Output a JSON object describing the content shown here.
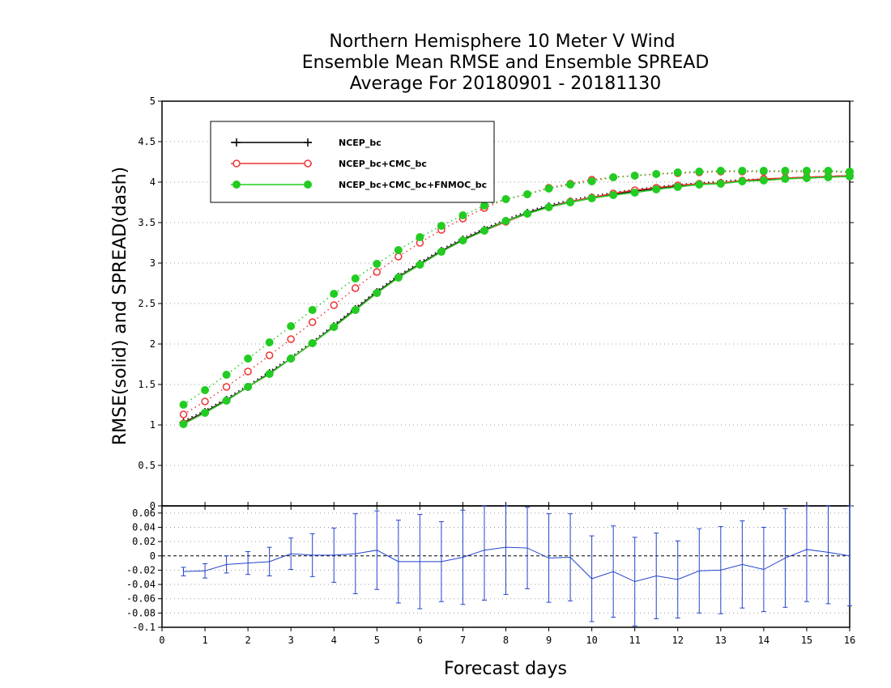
{
  "chart_data": {
    "type": "line",
    "title": [
      "Northern Hemisphere 10 Meter V Wind",
      "Ensemble Mean RMSE and Ensemble SPREAD",
      "Average For 20180901 - 20181130"
    ],
    "xlabel": "Forecast days",
    "ylabel": "RMSE(solid) and SPREAD(dash)",
    "xlim": [
      0,
      16
    ],
    "ylim": [
      0,
      5
    ],
    "x_ticks": [
      "0",
      "1",
      "2",
      "3",
      "4",
      "5",
      "6",
      "7",
      "8",
      "9",
      "10",
      "11",
      "12",
      "13",
      "14",
      "15",
      "16"
    ],
    "y_ticks": [
      "0",
      "0.5",
      "1",
      "1.5",
      "2",
      "2.5",
      "3",
      "3.5",
      "4",
      "4.5",
      "5"
    ],
    "grid": "dotted-horizontal",
    "legend_position": "top-left",
    "x": [
      0.5,
      1,
      1.5,
      2,
      2.5,
      3,
      3.5,
      4,
      4.5,
      5,
      5.5,
      6,
      6.5,
      7,
      7.5,
      8,
      8.5,
      9,
      9.5,
      10,
      10.5,
      11,
      11.5,
      12,
      12.5,
      13,
      13.5,
      14,
      14.5,
      15,
      15.5,
      16
    ],
    "series": [
      {
        "name": "NCEP_bc",
        "color": "#000000",
        "marker": "plus",
        "rmse": [
          1.03,
          1.16,
          1.31,
          1.47,
          1.64,
          1.82,
          2.01,
          2.22,
          2.43,
          2.64,
          2.83,
          2.99,
          3.15,
          3.29,
          3.41,
          3.52,
          3.62,
          3.7,
          3.76,
          3.81,
          3.85,
          3.89,
          3.92,
          3.95,
          3.97,
          3.99,
          4.01,
          4.03,
          4.05,
          4.06,
          4.07,
          4.08
        ],
        "spread": [
          1.05,
          1.18,
          1.33,
          1.49,
          1.66,
          1.84,
          2.03,
          2.24,
          2.45,
          2.66,
          2.85,
          3.01,
          3.17,
          3.31,
          3.43,
          3.54,
          3.64,
          3.72,
          3.78,
          3.83,
          3.87,
          3.91,
          3.94,
          3.97,
          3.99,
          4.01,
          4.03,
          4.04,
          4.05,
          4.06,
          4.07,
          4.08
        ]
      },
      {
        "name": "NCEP_bc+CMC_bc",
        "color": "#ee3333",
        "marker": "open-circle",
        "rmse": [
          1.02,
          1.15,
          1.3,
          1.47,
          1.63,
          1.82,
          2.01,
          2.21,
          2.42,
          2.63,
          2.82,
          2.98,
          3.14,
          3.28,
          3.4,
          3.51,
          3.61,
          3.69,
          3.76,
          3.81,
          3.86,
          3.9,
          3.93,
          3.96,
          3.98,
          3.99,
          4.02,
          4.04,
          4.05,
          4.06,
          4.07,
          4.08
        ],
        "spread": [
          1.13,
          1.29,
          1.47,
          1.66,
          1.86,
          2.06,
          2.27,
          2.48,
          2.69,
          2.89,
          3.08,
          3.25,
          3.41,
          3.55,
          3.68,
          3.79,
          3.85,
          3.93,
          3.98,
          4.03,
          4.06,
          4.08,
          4.1,
          4.11,
          4.12,
          4.13,
          4.13,
          4.13,
          4.13,
          4.13,
          4.13,
          4.12
        ]
      },
      {
        "name": "NCEP_bc+CMC_bc+FNMOC_bc",
        "color": "#22cc22",
        "marker": "filled-circle",
        "rmse": [
          1.01,
          1.15,
          1.3,
          1.47,
          1.63,
          1.82,
          2.01,
          2.21,
          2.42,
          2.63,
          2.82,
          2.98,
          3.14,
          3.28,
          3.4,
          3.52,
          3.61,
          3.69,
          3.75,
          3.8,
          3.84,
          3.87,
          3.91,
          3.94,
          3.97,
          3.98,
          4.01,
          4.02,
          4.04,
          4.05,
          4.06,
          4.07
        ],
        "spread": [
          1.25,
          1.43,
          1.62,
          1.82,
          2.02,
          2.22,
          2.42,
          2.62,
          2.81,
          2.99,
          3.16,
          3.32,
          3.46,
          3.59,
          3.71,
          3.79,
          3.85,
          3.92,
          3.97,
          4.01,
          4.06,
          4.08,
          4.1,
          4.12,
          4.13,
          4.14,
          4.14,
          4.14,
          4.14,
          4.14,
          4.14,
          4.13
        ]
      }
    ],
    "difference_panel": {
      "ylim": [
        -0.1,
        0.07
      ],
      "y_ticks": [
        "0.06",
        "0.04",
        "0.02",
        "0",
        "-0.02",
        "-0.04",
        "-0.06",
        "-0.08",
        "-0.1"
      ],
      "color": "#2244cc",
      "values": [
        -0.022,
        -0.021,
        -0.012,
        -0.01,
        -0.008,
        0.003,
        0.001,
        0.001,
        0.003,
        0.008,
        -0.008,
        -0.008,
        -0.008,
        -0.002,
        0.008,
        0.012,
        0.011,
        -0.003,
        -0.002,
        -0.032,
        -0.022,
        -0.036,
        -0.028,
        -0.033,
        -0.021,
        -0.02,
        -0.012,
        -0.019,
        -0.003,
        0.009,
        0.005,
        0.0
      ],
      "error_half": [
        0.006,
        0.01,
        0.012,
        0.016,
        0.02,
        0.022,
        0.03,
        0.038,
        0.056,
        0.055,
        0.058,
        0.066,
        0.056,
        0.066,
        0.07,
        0.066,
        0.057,
        0.062,
        0.061,
        0.06,
        0.064,
        0.062,
        0.06,
        0.054,
        0.059,
        0.061,
        0.061,
        0.059,
        0.069,
        0.073,
        0.072,
        0.07
      ]
    }
  }
}
